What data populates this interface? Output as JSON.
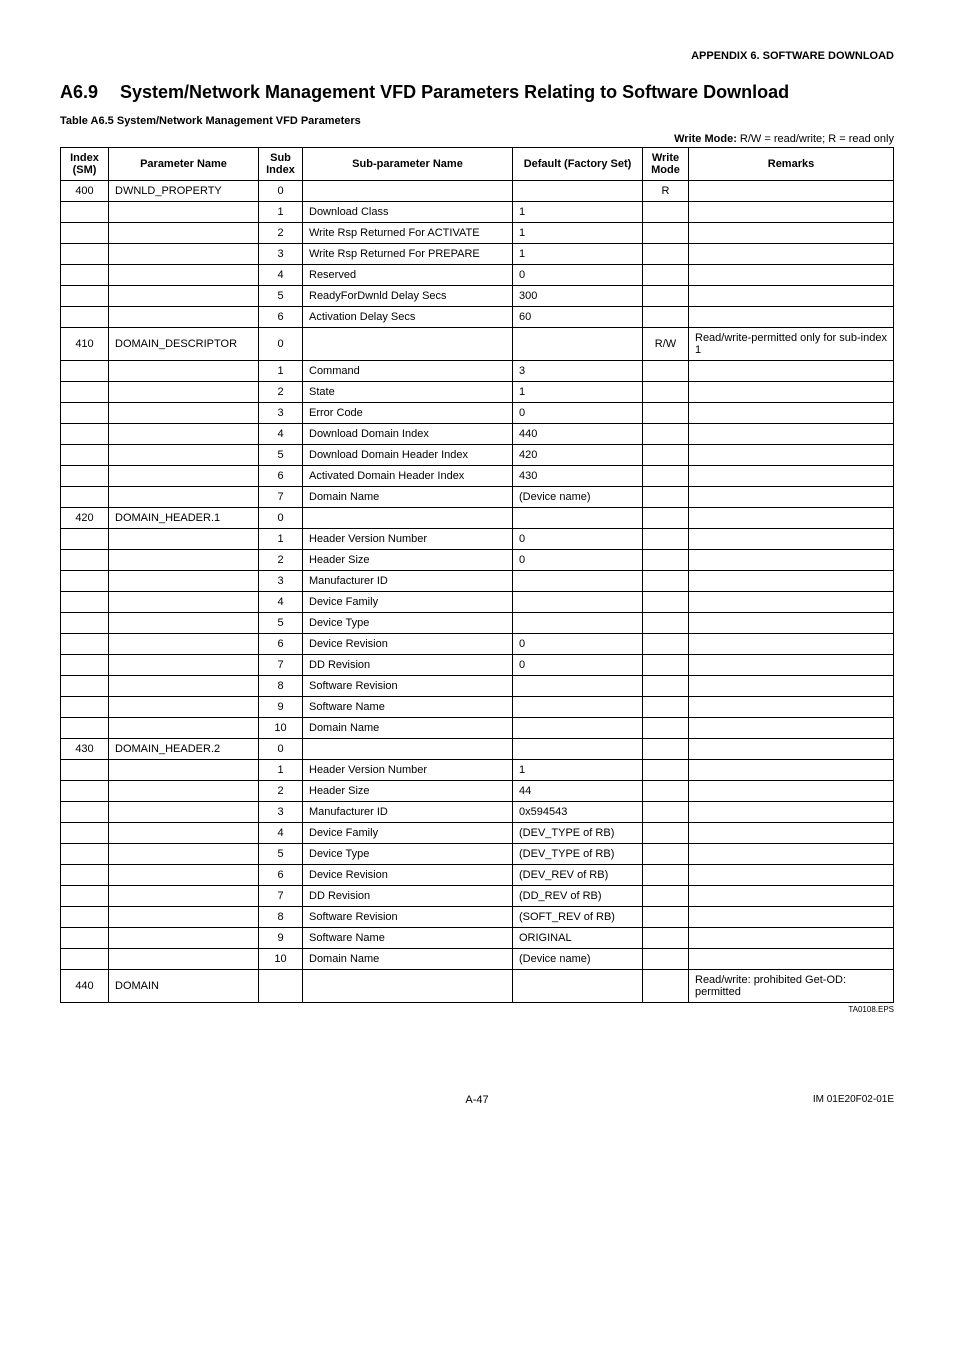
{
  "header": {
    "appendix": "APPENDIX 6. SOFTWARE DOWNLOAD"
  },
  "section": {
    "number": "A6.9",
    "title": "System/Network Management VFD Parameters Relating to Software Download"
  },
  "caption": "Table A6.5   System/Network Management VFD Parameters",
  "legend": {
    "label": "Write Mode:",
    "text": " R/W = read/write; R = read only"
  },
  "columns": {
    "index": "Index (SM)",
    "pname": "Parameter Name",
    "sub": "Sub Index",
    "subname": "Sub-parameter Name",
    "default": "Default (Factory Set)",
    "mode": "Write Mode",
    "remarks": "Remarks"
  },
  "rows": [
    {
      "index": "400",
      "pname": "DWNLD_PROPERTY",
      "sub": "0",
      "subname": "",
      "default": "",
      "mode": "R",
      "remarks": ""
    },
    {
      "index": "",
      "pname": "",
      "sub": "1",
      "subname": "Download Class",
      "default": "1",
      "mode": "",
      "remarks": ""
    },
    {
      "index": "",
      "pname": "",
      "sub": "2",
      "subname": "Write Rsp Returned For ACTIVATE",
      "default": "1",
      "mode": "",
      "remarks": ""
    },
    {
      "index": "",
      "pname": "",
      "sub": "3",
      "subname": "Write Rsp Returned For PREPARE",
      "default": "1",
      "mode": "",
      "remarks": ""
    },
    {
      "index": "",
      "pname": "",
      "sub": "4",
      "subname": "Reserved",
      "default": "0",
      "mode": "",
      "remarks": ""
    },
    {
      "index": "",
      "pname": "",
      "sub": "5",
      "subname": "ReadyForDwnld Delay Secs",
      "default": "300",
      "mode": "",
      "remarks": ""
    },
    {
      "index": "",
      "pname": "",
      "sub": "6",
      "subname": "Activation Delay Secs",
      "default": "60",
      "mode": "",
      "remarks": ""
    },
    {
      "index": "410",
      "pname": "DOMAIN_DESCRIPTOR",
      "sub": "0",
      "subname": "",
      "default": "",
      "mode": "R/W",
      "remarks": "Read/write-permitted only for sub-index 1"
    },
    {
      "index": "",
      "pname": "",
      "sub": "1",
      "subname": "Command",
      "default": "3",
      "mode": "",
      "remarks": ""
    },
    {
      "index": "",
      "pname": "",
      "sub": "2",
      "subname": "State",
      "default": "1",
      "mode": "",
      "remarks": ""
    },
    {
      "index": "",
      "pname": "",
      "sub": "3",
      "subname": "Error Code",
      "default": "0",
      "mode": "",
      "remarks": ""
    },
    {
      "index": "",
      "pname": "",
      "sub": "4",
      "subname": "Download Domain Index",
      "default": "440",
      "mode": "",
      "remarks": ""
    },
    {
      "index": "",
      "pname": "",
      "sub": "5",
      "subname": "Download Domain Header Index",
      "default": "420",
      "mode": "",
      "remarks": ""
    },
    {
      "index": "",
      "pname": "",
      "sub": "6",
      "subname": "Activated Domain Header Index",
      "default": "430",
      "mode": "",
      "remarks": ""
    },
    {
      "index": "",
      "pname": "",
      "sub": "7",
      "subname": "Domain Name",
      "default": "(Device name)",
      "mode": "",
      "remarks": ""
    },
    {
      "index": "420",
      "pname": "DOMAIN_HEADER.1",
      "sub": "0",
      "subname": "",
      "default": "",
      "mode": "",
      "remarks": ""
    },
    {
      "index": "",
      "pname": "",
      "sub": "1",
      "subname": "Header Version Number",
      "default": "0",
      "mode": "",
      "remarks": ""
    },
    {
      "index": "",
      "pname": "",
      "sub": "2",
      "subname": "Header Size",
      "default": "0",
      "mode": "",
      "remarks": ""
    },
    {
      "index": "",
      "pname": "",
      "sub": "3",
      "subname": "Manufacturer ID",
      "default": "",
      "mode": "",
      "remarks": ""
    },
    {
      "index": "",
      "pname": "",
      "sub": "4",
      "subname": "Device Family",
      "default": "",
      "mode": "",
      "remarks": ""
    },
    {
      "index": "",
      "pname": "",
      "sub": "5",
      "subname": "Device Type",
      "default": "",
      "mode": "",
      "remarks": ""
    },
    {
      "index": "",
      "pname": "",
      "sub": "6",
      "subname": "Device Revision",
      "default": "0",
      "mode": "",
      "remarks": ""
    },
    {
      "index": "",
      "pname": "",
      "sub": "7",
      "subname": "DD Revision",
      "default": "0",
      "mode": "",
      "remarks": ""
    },
    {
      "index": "",
      "pname": "",
      "sub": "8",
      "subname": "Software Revision",
      "default": "",
      "mode": "",
      "remarks": ""
    },
    {
      "index": "",
      "pname": "",
      "sub": "9",
      "subname": "Software Name",
      "default": "",
      "mode": "",
      "remarks": ""
    },
    {
      "index": "",
      "pname": "",
      "sub": "10",
      "subname": "Domain Name",
      "default": "",
      "mode": "",
      "remarks": ""
    },
    {
      "index": "430",
      "pname": "DOMAIN_HEADER.2",
      "sub": "0",
      "subname": "",
      "default": "",
      "mode": "",
      "remarks": ""
    },
    {
      "index": "",
      "pname": "",
      "sub": "1",
      "subname": "Header Version Number",
      "default": "1",
      "mode": "",
      "remarks": ""
    },
    {
      "index": "",
      "pname": "",
      "sub": "2",
      "subname": "Header Size",
      "default": "44",
      "mode": "",
      "remarks": ""
    },
    {
      "index": "",
      "pname": "",
      "sub": "3",
      "subname": "Manufacturer ID",
      "default": "0x594543",
      "mode": "",
      "remarks": ""
    },
    {
      "index": "",
      "pname": "",
      "sub": "4",
      "subname": "Device Family",
      "default": "(DEV_TYPE of RB)",
      "mode": "",
      "remarks": ""
    },
    {
      "index": "",
      "pname": "",
      "sub": "5",
      "subname": "Device Type",
      "default": "(DEV_TYPE of RB)",
      "mode": "",
      "remarks": ""
    },
    {
      "index": "",
      "pname": "",
      "sub": "6",
      "subname": "Device Revision",
      "default": "(DEV_REV of RB)",
      "mode": "",
      "remarks": ""
    },
    {
      "index": "",
      "pname": "",
      "sub": "7",
      "subname": "DD Revision",
      "default": "(DD_REV of RB)",
      "mode": "",
      "remarks": ""
    },
    {
      "index": "",
      "pname": "",
      "sub": "8",
      "subname": "Software Revision",
      "default": "(SOFT_REV of RB)",
      "mode": "",
      "remarks": ""
    },
    {
      "index": "",
      "pname": "",
      "sub": "9",
      "subname": "Software Name",
      "default": "ORIGINAL",
      "mode": "",
      "remarks": ""
    },
    {
      "index": "",
      "pname": "",
      "sub": "10",
      "subname": "Domain Name",
      "default": "(Device name)",
      "mode": "",
      "remarks": ""
    },
    {
      "index": "440",
      "pname": "DOMAIN",
      "sub": "",
      "subname": "",
      "default": "",
      "mode": "",
      "remarks": "Read/write: prohibited Get-OD: permitted"
    }
  ],
  "figref": "TA0108.EPS",
  "footer": {
    "page": "A-47",
    "doc": "IM 01E20F02-01E"
  }
}
